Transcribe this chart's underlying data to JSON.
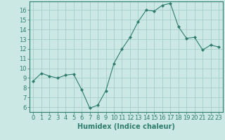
{
  "x": [
    0,
    1,
    2,
    3,
    4,
    5,
    6,
    7,
    8,
    9,
    10,
    11,
    12,
    13,
    14,
    15,
    16,
    17,
    18,
    19,
    20,
    21,
    22,
    23
  ],
  "y": [
    8.7,
    9.5,
    9.2,
    9.0,
    9.3,
    9.4,
    7.8,
    5.9,
    6.2,
    7.7,
    10.5,
    12.0,
    13.2,
    14.8,
    16.0,
    15.9,
    16.5,
    16.7,
    14.3,
    13.1,
    13.2,
    11.9,
    12.4,
    12.2
  ],
  "line_color": "#2e7d6e",
  "marker": "D",
  "marker_size": 2.0,
  "bg_color": "#cce8e4",
  "grid_color": "#a0c8c4",
  "xlabel": "Humidex (Indice chaleur)",
  "xlim": [
    -0.5,
    23.5
  ],
  "ylim": [
    5.5,
    16.9
  ],
  "yticks": [
    6,
    7,
    8,
    9,
    10,
    11,
    12,
    13,
    14,
    15,
    16
  ],
  "xticks": [
    0,
    1,
    2,
    3,
    4,
    5,
    6,
    7,
    8,
    9,
    10,
    11,
    12,
    13,
    14,
    15,
    16,
    17,
    18,
    19,
    20,
    21,
    22,
    23
  ],
  "tick_color": "#2e7d6e",
  "label_color": "#2e7d6e",
  "xlabel_fontsize": 7,
  "tick_fontsize": 6,
  "linewidth": 0.8
}
